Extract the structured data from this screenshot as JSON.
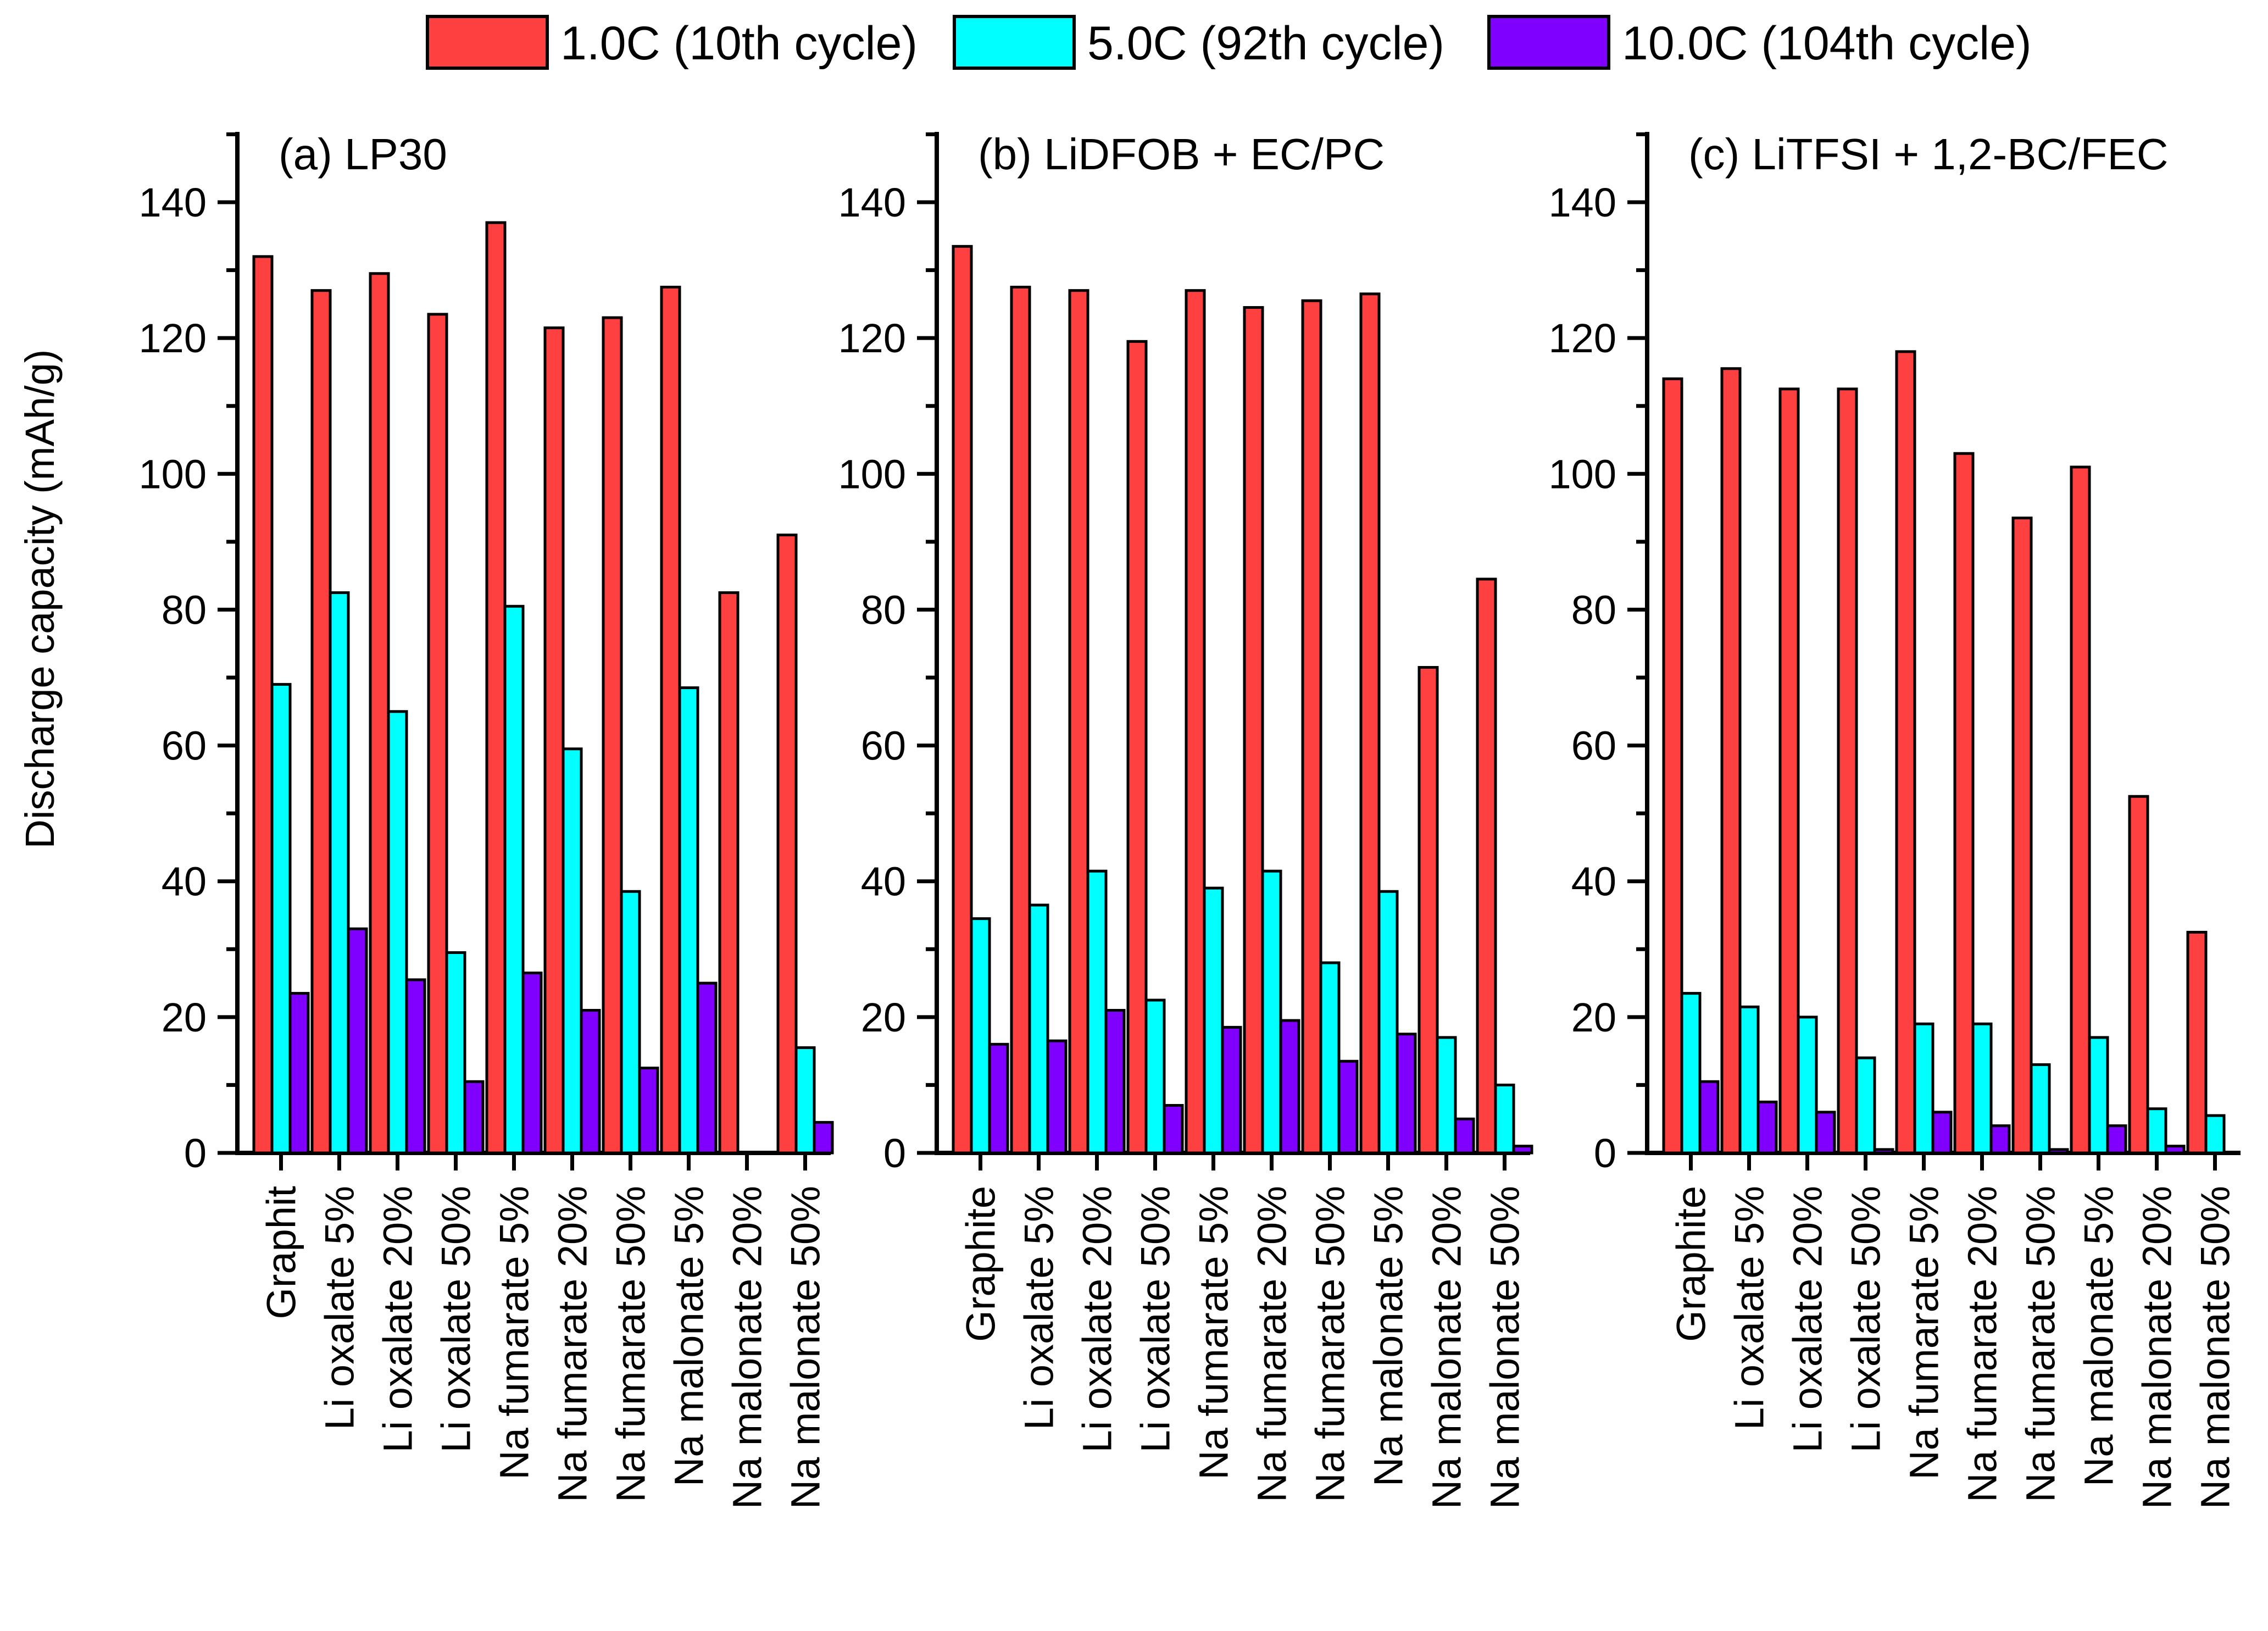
{
  "chart_data": {
    "type": "bar",
    "ylabel": "Discharge capacity (mAh/g)",
    "ylim": [
      0,
      150
    ],
    "yticks": [
      0,
      20,
      40,
      60,
      80,
      100,
      120,
      140
    ],
    "legend": {
      "placement": "top-center",
      "series": [
        {
          "name": "1.0C (10th cycle)",
          "color": "#ff4040"
        },
        {
          "name": "5.0C (92th cycle)",
          "color": "#00ffff"
        },
        {
          "name": "10.0C (104th cycle)",
          "color": "#7f00ff"
        }
      ]
    },
    "panels": [
      {
        "title": "(a) LP30",
        "categories": [
          "Graphit",
          "Li oxalate 5%",
          "Li oxalate 20%",
          "Li oxalate 50%",
          "Na fumarate 5%",
          "Na fumarate 20%",
          "Na fumarate 50%",
          "Na malonate 5%",
          "Na malonate 20%",
          "Na malonate 50%"
        ],
        "series": [
          {
            "name": "1.0C (10th cycle)",
            "values": [
              132,
              127,
              129.5,
              123.5,
              137,
              121.5,
              123,
              127.5,
              82.5,
              91
            ]
          },
          {
            "name": "5.0C (92th cycle)",
            "values": [
              69,
              82.5,
              65,
              29.5,
              80.5,
              59.5,
              38.5,
              68.5,
              0,
              15.5
            ]
          },
          {
            "name": "10.0C (104th cycle)",
            "values": [
              23.5,
              33,
              25.5,
              10.5,
              26.5,
              21,
              12.5,
              25,
              0,
              4.5
            ]
          }
        ]
      },
      {
        "title": "(b) LiDFOB + EC/PC",
        "categories": [
          "Graphite",
          "Li oxalate 5%",
          "Li oxalate 20%",
          "Li oxalate 50%",
          "Na fumarate 5%",
          "Na fumarate 20%",
          "Na fumarate 50%",
          "Na malonate 5%",
          "Na malonate 20%",
          "Na malonate 50%"
        ],
        "series": [
          {
            "name": "1.0C (10th cycle)",
            "values": [
              133.5,
              127.5,
              127,
              119.5,
              127,
              124.5,
              125.5,
              126.5,
              71.5,
              84.5
            ]
          },
          {
            "name": "5.0C (92th cycle)",
            "values": [
              34.5,
              36.5,
              41.5,
              22.5,
              39,
              41.5,
              28,
              38.5,
              17,
              10
            ]
          },
          {
            "name": "10.0C (104th cycle)",
            "values": [
              16,
              16.5,
              21,
              7,
              18.5,
              19.5,
              13.5,
              17.5,
              5,
              1
            ]
          }
        ]
      },
      {
        "title": "(c) LiTFSI + 1,2-BC/FEC",
        "categories": [
          "Graphite",
          "Li oxalate 5%",
          "Li oxalate 20%",
          "Li oxalate 50%",
          "Na fumarate 5%",
          "Na fumarate 20%",
          "Na fumarate 50%",
          "Na malonate 5%",
          "Na malonate 20%",
          "Na malonate 50%"
        ],
        "series": [
          {
            "name": "1.0C (10th cycle)",
            "values": [
              114,
              115.5,
              112.5,
              112.5,
              118,
              103,
              93.5,
              101,
              52.5,
              32.5
            ]
          },
          {
            "name": "5.0C (92th cycle)",
            "values": [
              23.5,
              21.5,
              20,
              14,
              19,
              19,
              13,
              17,
              6.5,
              5.5
            ]
          },
          {
            "name": "10.0C (104th cycle)",
            "values": [
              10.5,
              7.5,
              6,
              0.5,
              6,
              4,
              0.5,
              4,
              1,
              0
            ]
          }
        ]
      }
    ]
  }
}
